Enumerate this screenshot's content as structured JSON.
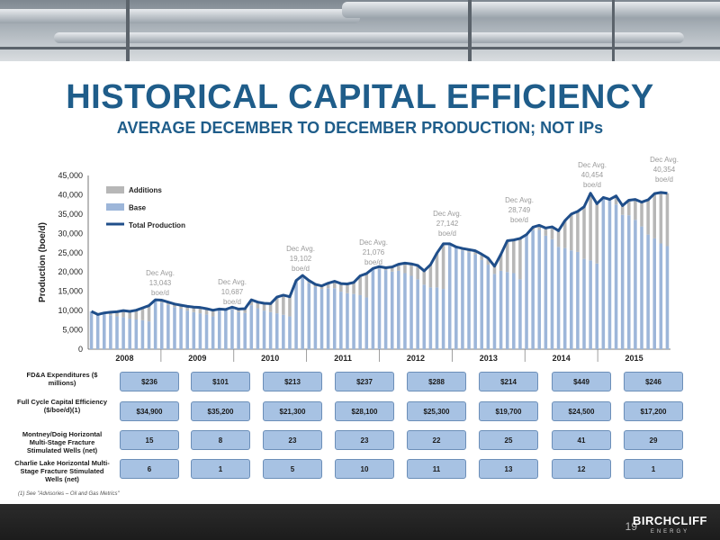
{
  "header": {
    "title": "HISTORICAL CAPITAL EFFICIENCY",
    "subtitle": "AVERAGE DECEMBER TO DECEMBER PRODUCTION; NOT IPs"
  },
  "colors": {
    "additions": "#b7b7b7",
    "base": "#9db6d9",
    "total": "#1f4e8a",
    "title": "#1f5d8a"
  },
  "chart_data": {
    "type": "area",
    "ylabel": "Production (boe/d)",
    "ylim": [
      0,
      45000
    ],
    "yticks": [
      "0",
      "5,000",
      "10,000",
      "15,000",
      "20,000",
      "25,000",
      "30,000",
      "35,000",
      "40,000",
      "45,000"
    ],
    "years": [
      "2008",
      "2009",
      "2010",
      "2011",
      "2012",
      "2013",
      "2014",
      "2015"
    ],
    "legend": [
      "Additions",
      "Base",
      "Total Production"
    ],
    "series": [
      {
        "name": "Total Production",
        "values": [
          9800,
          9000,
          9400,
          9600,
          9700,
          10000,
          9800,
          10100,
          10700,
          11300,
          12800,
          12700,
          12200,
          11700,
          11400,
          11100,
          10900,
          10800,
          10500,
          10100,
          10400,
          10300,
          10900,
          10400,
          10500,
          12800,
          12200,
          11900,
          11800,
          13500,
          14000,
          13600,
          17800,
          19100,
          17800,
          16800,
          16400,
          17100,
          17600,
          17000,
          16900,
          17300,
          19000,
          19600,
          20900,
          21400,
          21100,
          21300,
          22000,
          22300,
          22100,
          21700,
          20300,
          21900,
          24900,
          27300,
          27300,
          26500,
          26100,
          25800,
          25500,
          24600,
          23600,
          21500,
          24600,
          28100,
          28300,
          28700,
          29700,
          31600,
          32100,
          31400,
          31700,
          30700,
          33300,
          35000,
          35700,
          36900,
          40400,
          37700,
          39300,
          38800,
          39700,
          37200,
          38600,
          38800,
          38100,
          38700,
          40300,
          40600,
          40400
        ]
      },
      {
        "name": "Base",
        "values": [
          9800,
          9000,
          9100,
          8800,
          8500,
          8300,
          7900,
          7700,
          7500,
          7200,
          12600,
          12100,
          11500,
          10900,
          10500,
          10000,
          9600,
          9300,
          9000,
          8500,
          10400,
          10100,
          10400,
          9600,
          9400,
          11400,
          10600,
          10000,
          9600,
          9300,
          8900,
          8500,
          17600,
          18500,
          17100,
          16100,
          15600,
          15800,
          15800,
          14900,
          14500,
          14300,
          14000,
          13400,
          20900,
          20900,
          20500,
          20100,
          20300,
          19700,
          19000,
          18100,
          16700,
          16000,
          16000,
          15600,
          27200,
          26300,
          25600,
          25100,
          24500,
          23100,
          21900,
          19500,
          20300,
          20000,
          19700,
          18100,
          29600,
          30800,
          30900,
          29400,
          28500,
          26500,
          26200,
          25600,
          25200,
          23400,
          23000,
          22200,
          39100,
          38500,
          37500,
          34800,
          34700,
          33500,
          31800,
          29700,
          28700,
          27400,
          26700
        ]
      }
    ],
    "annotations": [
      [
        "Dec Avg.",
        "13,043",
        "boe/d"
      ],
      [
        "Dec Avg.",
        "10,687",
        "boe/d"
      ],
      [
        "Dec Avg.",
        "19,102",
        "boe/d"
      ],
      [
        "Dec Avg.",
        "21,076",
        "boe/d"
      ],
      [
        "Dec Avg.",
        "27,142",
        "boe/d"
      ],
      [
        "Dec Avg.",
        "28,749",
        "boe/d"
      ],
      [
        "Dec Avg.",
        "40,454",
        "boe/d"
      ],
      [
        "Dec Avg.",
        "40,354",
        "boe/d"
      ]
    ]
  },
  "table": {
    "rows": [
      {
        "label": "FD&A Expenditures ($ millions)",
        "values": [
          "$236",
          "$101",
          "$213",
          "$237",
          "$288",
          "$214",
          "$449",
          "$246"
        ]
      },
      {
        "label": "Full Cycle Capital Efficiency ($/boe/d)(1)",
        "values": [
          "$34,900",
          "$35,200",
          "$21,300",
          "$28,100",
          "$25,300",
          "$19,700",
          "$24,500",
          "$17,200"
        ]
      },
      {
        "label": "Montney/Doig Horizontal Multi-Stage Fracture Stimulated Wells (net)",
        "values": [
          "15",
          "8",
          "23",
          "23",
          "22",
          "25",
          "41",
          "29"
        ]
      },
      {
        "label": "Charlie Lake Horizontal Multi-Stage Fracture Stimulated Wells (net)",
        "values": [
          "6",
          "1",
          "5",
          "10",
          "11",
          "13",
          "12",
          "1"
        ]
      }
    ]
  },
  "footnote": "(1) See \"Advisories – Oil and Gas Metrics\"",
  "footer": {
    "page": "19",
    "logo_main": "BIRCHCLIFF",
    "logo_sub": "ENERGY"
  }
}
